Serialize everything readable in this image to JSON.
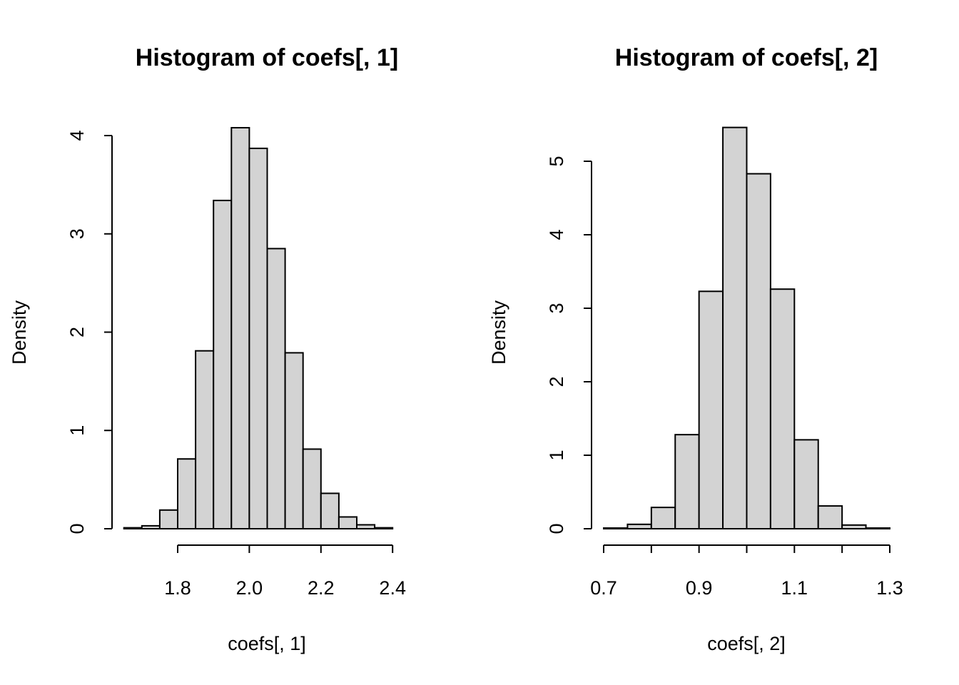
{
  "chart_data": [
    {
      "type": "bar",
      "subtype": "histogram",
      "title": "Histogram of coefs[, 1]",
      "xlabel": "coefs[, 1]",
      "ylabel": "Density",
      "bin_edges": [
        1.65,
        1.7,
        1.75,
        1.8,
        1.85,
        1.9,
        1.95,
        2.0,
        2.05,
        2.1,
        2.15,
        2.2,
        2.25,
        2.3,
        2.35,
        2.4,
        2.45
      ],
      "values": [
        0.01,
        0.03,
        0.19,
        0.71,
        1.81,
        3.34,
        4.08,
        3.87,
        2.85,
        1.79,
        0.81,
        0.36,
        0.12,
        0.04,
        0.01,
        0.0
      ],
      "xticks": [
        1.8,
        2.0,
        2.2,
        2.4
      ],
      "xtick_labels": [
        "1.8",
        "2.0",
        "2.2",
        "2.4"
      ],
      "yticks": [
        0,
        1,
        2,
        3,
        4
      ],
      "ytick_labels": [
        "0",
        "1",
        "2",
        "3",
        "4"
      ],
      "ylim": [
        0,
        4.08
      ],
      "grid": false,
      "fill_color": "#d3d3d3",
      "edge_color": "#000000"
    },
    {
      "type": "bar",
      "subtype": "histogram",
      "title": "Histogram of coefs[, 2]",
      "xlabel": "coefs[, 2]",
      "ylabel": "Density",
      "bin_edges": [
        0.7,
        0.75,
        0.8,
        0.85,
        0.9,
        0.95,
        1.0,
        1.05,
        1.1,
        1.15,
        1.2,
        1.25,
        1.3
      ],
      "values": [
        0.01,
        0.06,
        0.29,
        1.28,
        3.23,
        5.46,
        4.83,
        3.26,
        1.21,
        0.31,
        0.05,
        0.01
      ],
      "xticks": [
        0.7,
        0.8,
        0.9,
        1.0,
        1.1,
        1.2,
        1.3
      ],
      "xtick_labels": [
        "0.7",
        "",
        "0.9",
        "",
        "1.1",
        "",
        "1.3"
      ],
      "yticks": [
        0,
        1,
        2,
        3,
        4,
        5
      ],
      "ytick_labels": [
        "0",
        "1",
        "2",
        "3",
        "4",
        "5"
      ],
      "ylim": [
        0,
        5.46
      ],
      "grid": false,
      "fill_color": "#d3d3d3",
      "edge_color": "#000000"
    }
  ]
}
